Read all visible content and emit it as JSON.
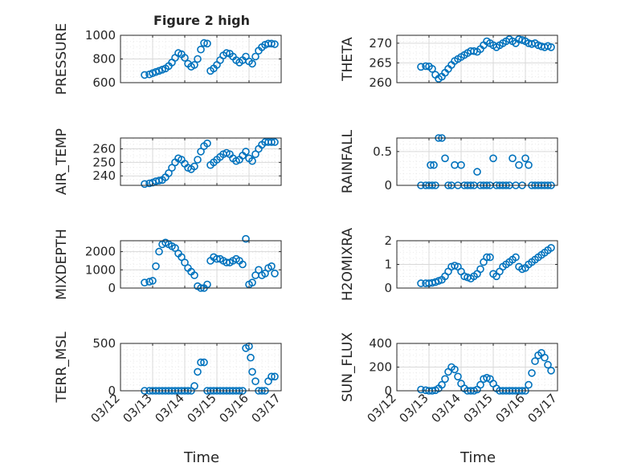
{
  "figure": {
    "title": "Figure 2 high",
    "xlabel_left": "Time",
    "xlabel_right": "Time",
    "x_tick_labels": [
      "03/12",
      "03/13",
      "03/14",
      "03/15",
      "03/16",
      "03/17"
    ],
    "marker_color": "#0072BD",
    "grid_color": "#d9d9d9"
  },
  "chart_data": [
    {
      "type": "scatter",
      "title": "Figure 2 high",
      "ylabel": "PRESSURE",
      "xlim": [
        0,
        5
      ],
      "ylim": [
        600,
        1000
      ],
      "yticks": [
        600,
        800,
        1000
      ],
      "grid": true,
      "x": [
        0.75,
        0.9,
        1.0,
        1.1,
        1.2,
        1.3,
        1.4,
        1.5,
        1.6,
        1.7,
        1.8,
        1.9,
        2.0,
        2.1,
        2.2,
        2.3,
        2.4,
        2.5,
        2.6,
        2.7,
        2.8,
        2.9,
        3.0,
        3.1,
        3.2,
        3.3,
        3.4,
        3.5,
        3.6,
        3.7,
        3.8,
        3.9,
        4.0,
        4.1,
        4.2,
        4.3,
        4.4,
        4.5,
        4.6,
        4.7,
        4.8
      ],
      "y": [
        665,
        670,
        680,
        690,
        700,
        710,
        720,
        740,
        770,
        810,
        850,
        840,
        810,
        760,
        735,
        750,
        800,
        880,
        935,
        930,
        700,
        720,
        750,
        790,
        830,
        850,
        845,
        820,
        790,
        770,
        790,
        820,
        780,
        760,
        820,
        870,
        900,
        920,
        930,
        930,
        925
      ]
    },
    {
      "type": "scatter",
      "ylabel": "THETA",
      "xlim": [
        0,
        5
      ],
      "ylim": [
        260,
        272
      ],
      "yticks": [
        260,
        265,
        270
      ],
      "grid": true,
      "x": [
        0.75,
        0.9,
        1.0,
        1.1,
        1.2,
        1.3,
        1.4,
        1.5,
        1.6,
        1.7,
        1.8,
        1.9,
        2.0,
        2.1,
        2.2,
        2.3,
        2.4,
        2.5,
        2.6,
        2.7,
        2.8,
        2.9,
        3.0,
        3.1,
        3.2,
        3.3,
        3.4,
        3.5,
        3.6,
        3.7,
        3.8,
        3.9,
        4.0,
        4.1,
        4.2,
        4.3,
        4.4,
        4.5,
        4.6,
        4.7,
        4.8
      ],
      "y": [
        264,
        264.2,
        264.1,
        263.5,
        262,
        261,
        261.5,
        262.5,
        263.5,
        264.5,
        265.5,
        266,
        266.5,
        267,
        267.5,
        268,
        268,
        267.8,
        268.5,
        269.5,
        270.5,
        270,
        269.5,
        269,
        269.5,
        270,
        270.5,
        271,
        270.5,
        270,
        271,
        270.8,
        270.5,
        270,
        269.8,
        270,
        269.5,
        269.2,
        269,
        269.3,
        269
      ]
    },
    {
      "type": "scatter",
      "ylabel": "AIR_TEMP",
      "xlim": [
        0,
        5
      ],
      "ylim": [
        233,
        268
      ],
      "yticks": [
        240,
        250,
        260
      ],
      "grid": true,
      "x": [
        0.75,
        0.9,
        1.0,
        1.1,
        1.2,
        1.3,
        1.4,
        1.5,
        1.6,
        1.7,
        1.8,
        1.9,
        2.0,
        2.1,
        2.2,
        2.3,
        2.4,
        2.5,
        2.6,
        2.7,
        2.8,
        2.9,
        3.0,
        3.1,
        3.2,
        3.3,
        3.4,
        3.5,
        3.6,
        3.7,
        3.8,
        3.9,
        4.0,
        4.1,
        4.2,
        4.3,
        4.4,
        4.5,
        4.6,
        4.7,
        4.8
      ],
      "y": [
        234,
        234.5,
        235,
        236,
        236.5,
        237,
        239,
        242,
        246,
        250,
        253,
        252,
        249,
        246,
        245,
        247,
        252,
        258,
        262,
        264,
        248,
        250,
        252,
        254,
        256,
        257,
        256,
        253,
        251,
        252,
        255,
        258,
        253,
        251,
        256,
        260,
        263,
        265,
        265,
        265,
        265
      ]
    },
    {
      "type": "scatter",
      "ylabel": "RAINFALL",
      "xlim": [
        0,
        5
      ],
      "ylim": [
        0,
        0.7
      ],
      "yticks": [
        0,
        0.5
      ],
      "grid": true,
      "x": [
        0.75,
        0.9,
        1.0,
        1.05,
        1.1,
        1.15,
        1.2,
        1.3,
        1.4,
        1.5,
        1.6,
        1.7,
        1.8,
        1.9,
        2.0,
        2.1,
        2.2,
        2.3,
        2.4,
        2.5,
        2.6,
        2.7,
        2.8,
        2.9,
        3.0,
        3.1,
        3.2,
        3.3,
        3.4,
        3.5,
        3.6,
        3.7,
        3.8,
        3.9,
        4.0,
        4.1,
        4.2,
        4.3,
        4.4,
        4.5,
        4.6,
        4.7,
        4.8
      ],
      "y": [
        0,
        0,
        0,
        0.3,
        0,
        0.3,
        0,
        0.7,
        0.7,
        0.4,
        0,
        0,
        0.3,
        0,
        0.3,
        0,
        0,
        0,
        0,
        0.2,
        0,
        0,
        0,
        0,
        0.4,
        0,
        0,
        0,
        0,
        0,
        0.4,
        0,
        0.3,
        0,
        0.4,
        0.3,
        0,
        0,
        0,
        0,
        0,
        0,
        0
      ]
    },
    {
      "type": "scatter",
      "ylabel": "MIXDEPTH",
      "xlim": [
        0,
        5
      ],
      "ylim": [
        0,
        2600
      ],
      "yticks": [
        0,
        1000,
        2000
      ],
      "grid": true,
      "x": [
        0.75,
        0.9,
        1.0,
        1.1,
        1.2,
        1.3,
        1.4,
        1.5,
        1.6,
        1.7,
        1.8,
        1.9,
        2.0,
        2.1,
        2.2,
        2.3,
        2.4,
        2.5,
        2.6,
        2.7,
        2.8,
        2.9,
        3.0,
        3.1,
        3.2,
        3.3,
        3.4,
        3.5,
        3.6,
        3.7,
        3.8,
        3.9,
        4.0,
        4.1,
        4.2,
        4.3,
        4.4,
        4.5,
        4.6,
        4.7,
        4.8
      ],
      "y": [
        300,
        350,
        400,
        1200,
        2000,
        2400,
        2500,
        2400,
        2300,
        2200,
        1900,
        1700,
        1400,
        1100,
        900,
        700,
        100,
        0,
        0,
        200,
        1500,
        1700,
        1600,
        1600,
        1500,
        1400,
        1400,
        1500,
        1600,
        1500,
        1300,
        2700,
        200,
        300,
        700,
        1000,
        700,
        800,
        1100,
        1200,
        800
      ]
    },
    {
      "type": "scatter",
      "ylabel": "H2OMIXRA",
      "xlim": [
        0,
        5
      ],
      "ylim": [
        0,
        2
      ],
      "yticks": [
        0,
        1,
        2
      ],
      "grid": true,
      "x": [
        0.75,
        0.9,
        1.0,
        1.1,
        1.2,
        1.3,
        1.4,
        1.5,
        1.6,
        1.7,
        1.8,
        1.9,
        2.0,
        2.1,
        2.2,
        2.3,
        2.4,
        2.5,
        2.6,
        2.7,
        2.8,
        2.9,
        3.0,
        3.1,
        3.2,
        3.3,
        3.4,
        3.5,
        3.6,
        3.7,
        3.8,
        3.9,
        4.0,
        4.1,
        4.2,
        4.3,
        4.4,
        4.5,
        4.6,
        4.7,
        4.8
      ],
      "y": [
        0.2,
        0.2,
        0.2,
        0.22,
        0.25,
        0.3,
        0.35,
        0.5,
        0.7,
        0.9,
        0.95,
        0.9,
        0.7,
        0.5,
        0.45,
        0.4,
        0.5,
        0.6,
        0.8,
        1.1,
        1.3,
        1.3,
        0.6,
        0.5,
        0.7,
        0.9,
        1.0,
        1.1,
        1.2,
        1.3,
        0.9,
        0.8,
        0.85,
        1.0,
        1.1,
        1.2,
        1.3,
        1.4,
        1.5,
        1.6,
        1.7
      ]
    },
    {
      "type": "scatter",
      "ylabel": "TERR_MSL",
      "xlim": [
        0,
        5
      ],
      "ylim": [
        0,
        500
      ],
      "yticks": [
        0,
        500
      ],
      "grid": true,
      "x": [
        0.75,
        0.9,
        1.0,
        1.1,
        1.2,
        1.3,
        1.4,
        1.5,
        1.6,
        1.7,
        1.8,
        1.9,
        2.0,
        2.1,
        2.2,
        2.3,
        2.4,
        2.5,
        2.6,
        2.7,
        2.8,
        2.9,
        3.0,
        3.1,
        3.2,
        3.3,
        3.4,
        3.5,
        3.6,
        3.7,
        3.8,
        3.9,
        4.0,
        4.05,
        4.1,
        4.2,
        4.3,
        4.4,
        4.5,
        4.6,
        4.7,
        4.8
      ],
      "y": [
        0,
        0,
        0,
        0,
        0,
        0,
        0,
        0,
        0,
        0,
        0,
        0,
        0,
        0,
        0,
        50,
        200,
        300,
        300,
        0,
        0,
        0,
        0,
        0,
        0,
        0,
        0,
        0,
        0,
        0,
        0,
        450,
        470,
        350,
        200,
        100,
        0,
        0,
        0,
        100,
        150,
        150
      ]
    },
    {
      "type": "scatter",
      "ylabel": "SUN_FLUX",
      "xlim": [
        0,
        5
      ],
      "ylim": [
        0,
        400
      ],
      "yticks": [
        0,
        200,
        400
      ],
      "grid": true,
      "x": [
        0.75,
        0.9,
        1.0,
        1.1,
        1.2,
        1.3,
        1.4,
        1.5,
        1.6,
        1.7,
        1.8,
        1.9,
        2.0,
        2.1,
        2.2,
        2.3,
        2.4,
        2.5,
        2.6,
        2.7,
        2.8,
        2.9,
        3.0,
        3.1,
        3.2,
        3.3,
        3.4,
        3.5,
        3.6,
        3.7,
        3.8,
        3.9,
        4.0,
        4.1,
        4.2,
        4.3,
        4.4,
        4.5,
        4.6,
        4.7,
        4.8
      ],
      "y": [
        10,
        5,
        0,
        0,
        5,
        20,
        50,
        100,
        160,
        200,
        180,
        120,
        60,
        20,
        0,
        0,
        0,
        10,
        50,
        100,
        110,
        100,
        60,
        20,
        0,
        0,
        0,
        0,
        0,
        0,
        0,
        0,
        0,
        50,
        150,
        250,
        300,
        320,
        280,
        220,
        170
      ]
    }
  ]
}
